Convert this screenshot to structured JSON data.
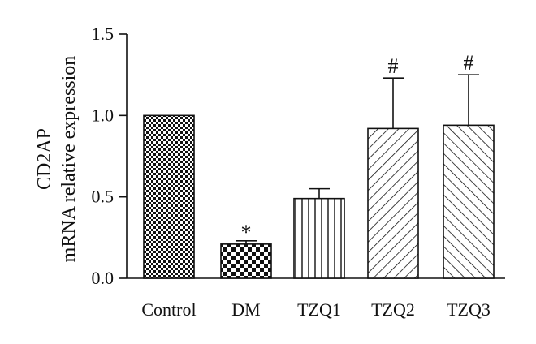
{
  "chart_data": {
    "type": "bar",
    "categories": [
      "Control",
      "DM",
      "TZQ1",
      "TZQ2",
      "TZQ3"
    ],
    "values": [
      1.0,
      0.21,
      0.49,
      0.92,
      0.94
    ],
    "errors": [
      0.0,
      0.02,
      0.06,
      0.31,
      0.31
    ],
    "annotations": [
      "",
      "*",
      "",
      "#",
      "#"
    ],
    "patterns": [
      "checker-fine",
      "checker-coarse",
      "vertical-lines",
      "diagonal-right",
      "diagonal-left"
    ],
    "ylabel_line1": "CD2AP",
    "ylabel_line2": "mRNA relative expression",
    "ylim": [
      0,
      1.5
    ],
    "yticks": [
      "0.0",
      "0.5",
      "1.0",
      "1.5"
    ],
    "ytick_values": [
      0,
      0.5,
      1.0,
      1.5
    ],
    "grid": false,
    "bar_color": "#111111"
  }
}
